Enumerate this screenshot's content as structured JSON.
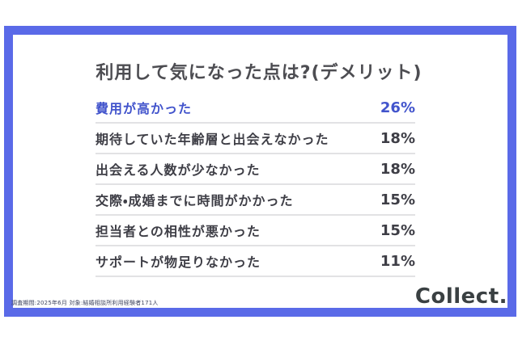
{
  "title": "利用して気になった点は?(デメリット)",
  "rows": [
    {
      "label": "費用が高かった",
      "value": "26%",
      "highlight": true
    },
    {
      "label": "期待していた年齢層と出会えなかった",
      "value": "18%",
      "highlight": false
    },
    {
      "label": "出会える人数が少なかった",
      "value": "18%",
      "highlight": false
    },
    {
      "label": "交際・成婚までに時間がかかった",
      "value": "15%",
      "highlight": false
    },
    {
      "label": "担当者との相性が悪かった",
      "value": "15%",
      "highlight": false
    },
    {
      "label": "サポートが物足りなかった",
      "value": "11%",
      "highlight": false
    }
  ],
  "footnote": "調査期間:2025年6月 対象:結婚相談所利用経験者171人",
  "logo": "Collect.",
  "colors": {
    "frame_blue": "#5A6AE8",
    "highlight_blue": "#4254CC",
    "text_dark": "#3E3E46",
    "divider": "#E2E2E4"
  },
  "chart_data": {
    "type": "table",
    "title": "利用して気になった点は?(デメリット)",
    "categories": [
      "費用が高かった",
      "期待していた年齢層と出会えなかった",
      "出会える人数が少なかった",
      "交際・成婚までに時間がかかった",
      "担当者との相性が悪かった",
      "サポートが物足りなかった"
    ],
    "values": [
      26,
      18,
      18,
      15,
      15,
      11
    ],
    "unit": "%",
    "highlighted_index": 0,
    "source_note": "調査期間:2025年6月 対象:結婚相談所利用経験者171人",
    "legend_position": "none",
    "grid": false
  }
}
